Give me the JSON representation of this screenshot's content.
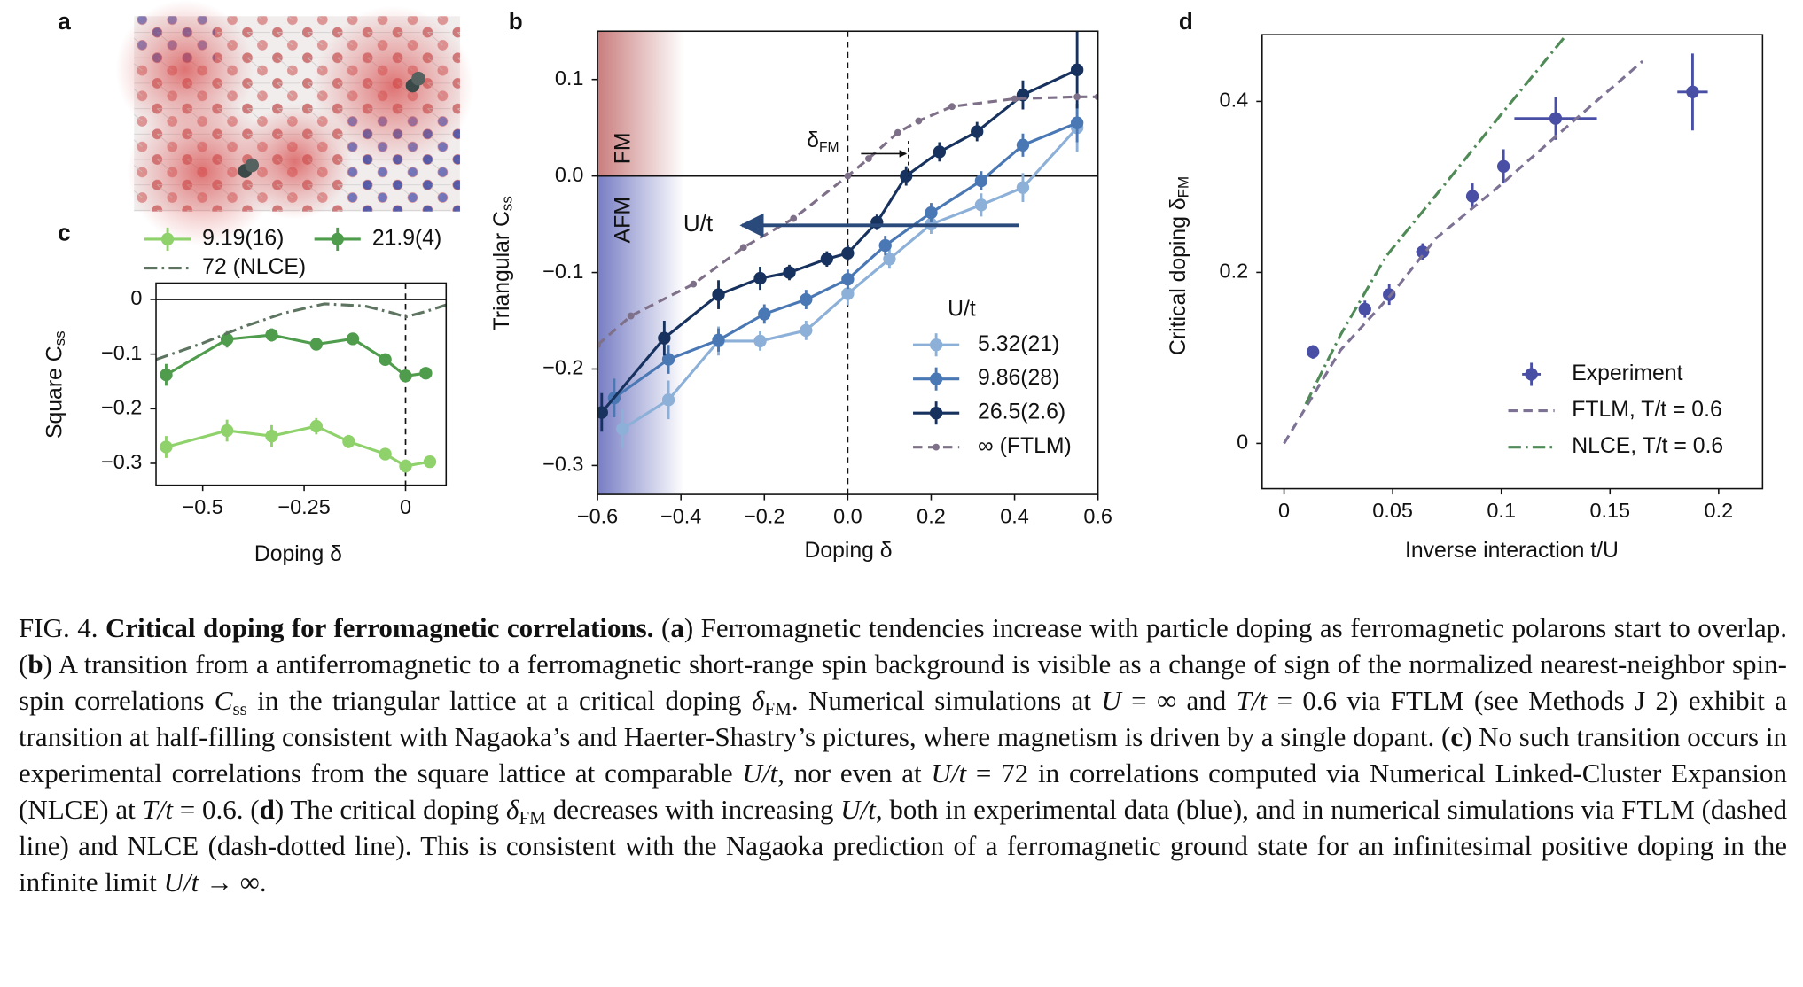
{
  "panel_labels": [
    "a",
    "b",
    "c",
    "d"
  ],
  "chart_data": [
    {
      "type": "line",
      "xlabel": "Doping δ",
      "ylabel": "Triangular C",
      "ylabel_subscript": "ss",
      "xlim": [
        -0.6,
        0.6
      ],
      "ylim": [
        -0.33,
        0.15
      ],
      "xticks": [
        {
          "value": -0.6,
          "label": "−0.6"
        },
        {
          "value": -0.4,
          "label": "−0.4"
        },
        {
          "value": -0.2,
          "label": "−0.2"
        },
        {
          "value": 0,
          "label": "0.0"
        },
        0.2,
        0.4,
        0.6
      ],
      "yticks": [
        {
          "value": -0.3,
          "label": "−0.3"
        },
        {
          "value": -0.2,
          "label": "−0.2"
        },
        {
          "value": -0.1,
          "label": "−0.1"
        },
        {
          "value": 0,
          "label": "0.0"
        },
        0.1
      ],
      "zero_lines": true,
      "legend_title": "U/t",
      "legend_loc": "lower right",
      "legend_columns": 1,
      "annotations": [
        "FM",
        "AFM",
        "U/t"
      ],
      "threshold_label": "δ",
      "threshold_label_subscript": "FM",
      "series": [
        {
          "name": "5.32(21)",
          "color": "#8cb0d8",
          "linestyle": "solid",
          "marker": "circle",
          "x": [
            -0.54,
            -0.43,
            -0.31,
            -0.21,
            -0.1,
            0,
            0.1,
            0.2,
            0.32,
            0.42,
            0.55
          ],
          "values": [
            -0.262,
            -0.232,
            -0.171,
            -0.171,
            -0.16,
            -0.122,
            -0.086,
            -0.05,
            -0.03,
            -0.012,
            0.05
          ],
          "errors": [
            0.02,
            0.02,
            0.015,
            0.01,
            0.01,
            0.012,
            0.01,
            0.01,
            0.012,
            0.015,
            0.025
          ]
        },
        {
          "name": "9.86(28)",
          "color": "#4a78b5",
          "linestyle": "solid",
          "marker": "circle",
          "x": [
            -0.56,
            -0.43,
            -0.31,
            -0.2,
            -0.1,
            0,
            0.09,
            0.2,
            0.32,
            0.42,
            0.55
          ],
          "values": [
            -0.23,
            -0.19,
            -0.17,
            -0.143,
            -0.128,
            -0.107,
            -0.072,
            -0.038,
            -0.005,
            0.032,
            0.055
          ],
          "errors": [
            0.02,
            0.015,
            0.012,
            0.01,
            0.01,
            0.01,
            0.01,
            0.01,
            0.01,
            0.012,
            0.02
          ]
        },
        {
          "name": "26.5(2.6)",
          "color": "#17325f",
          "linestyle": "solid",
          "marker": "circle",
          "x": [
            -0.59,
            -0.44,
            -0.31,
            -0.21,
            -0.14,
            -0.05,
            0,
            0.07,
            0.14,
            0.22,
            0.31,
            0.42,
            0.55
          ],
          "values": [
            -0.245,
            -0.168,
            -0.123,
            -0.106,
            -0.1,
            -0.086,
            -0.08,
            -0.048,
            0,
            0.025,
            0.046,
            0.084,
            0.11
          ],
          "errors": [
            0.02,
            0.018,
            0.015,
            0.012,
            0.008,
            0.008,
            0.008,
            0.008,
            0.01,
            0.01,
            0.01,
            0.015,
            0.04
          ]
        },
        {
          "name": "∞ (FTLM)",
          "color": "#7e7088",
          "linestyle": "dashed",
          "marker": "dot",
          "x": [
            -0.6,
            -0.52,
            -0.37,
            -0.25,
            -0.13,
            0,
            0.05,
            0.12,
            0.17,
            0.25,
            0.4,
            0.55,
            0.6
          ],
          "values": [
            -0.175,
            -0.145,
            -0.112,
            -0.074,
            -0.044,
            0,
            0.018,
            0.045,
            0.057,
            0.072,
            0.08,
            0.082,
            0.082
          ]
        }
      ]
    },
    {
      "type": "line",
      "xlabel": "Doping δ",
      "ylabel": "Square C",
      "ylabel_subscript": "ss",
      "xlim": [
        -0.615,
        0.1
      ],
      "ylim": [
        -0.34,
        0.03
      ],
      "xticks": [
        {
          "value": -0.5,
          "label": "−0.5"
        },
        {
          "value": -0.25,
          "label": "−0.25"
        },
        0
      ],
      "yticks": [
        {
          "value": -0.3,
          "label": "−0.3"
        },
        {
          "value": -0.2,
          "label": "−0.2"
        },
        {
          "value": -0.1,
          "label": "−0.1"
        },
        0
      ],
      "zero_lines": true,
      "legend_loc": "upper left",
      "legend_columns": 2,
      "series": [
        {
          "name": "9.19(16)",
          "color": "#8fd26b",
          "linestyle": "solid",
          "marker": "circle",
          "x": [
            -0.59,
            -0.44,
            -0.33,
            -0.22,
            -0.14,
            -0.05,
            0,
            0.06
          ],
          "values": [
            -0.27,
            -0.24,
            -0.25,
            -0.232,
            -0.26,
            -0.283,
            -0.305,
            -0.297
          ],
          "errors": [
            0.02,
            0.02,
            0.02,
            0.015,
            0.012,
            0.01,
            0.012,
            0.01
          ]
        },
        {
          "name": "21.9(4)",
          "color": "#4e9c4c",
          "linestyle": "solid",
          "marker": "circle",
          "x": [
            -0.59,
            -0.44,
            -0.33,
            -0.22,
            -0.13,
            -0.05,
            0,
            0.05
          ],
          "values": [
            -0.138,
            -0.073,
            -0.065,
            -0.082,
            -0.072,
            -0.11,
            -0.14,
            -0.135
          ],
          "errors": [
            0.02,
            0.015,
            0.012,
            0.01,
            0.01,
            0.01,
            0.01,
            0.01
          ]
        },
        {
          "name": "72 (NLCE)",
          "color": "#5d7560",
          "linestyle": "dashdot",
          "marker": "none",
          "x": [
            -0.615,
            -0.5,
            -0.4,
            -0.3,
            -0.2,
            -0.1,
            -0.03,
            0,
            0.05,
            0.1
          ],
          "values": [
            -0.11,
            -0.08,
            -0.05,
            -0.025,
            -0.008,
            -0.012,
            -0.025,
            -0.032,
            -0.022,
            -0.01
          ]
        }
      ]
    },
    {
      "type": "line",
      "xlabel": "Inverse interaction t/U",
      "ylabel": "Critical doping δ",
      "ylabel_subscript": "FM",
      "xlim": [
        -0.0101,
        0.2202
      ],
      "ylim": [
        -0.053,
        0.478
      ],
      "xticks": [
        0,
        0.05,
        0.1,
        0.15,
        0.2
      ],
      "yticks": [
        0,
        0.2,
        0.4
      ],
      "zero_lines": false,
      "legend_loc": "lower right",
      "legend_columns": 1,
      "series": [
        {
          "name": "Experiment",
          "color": "#4a4fa6",
          "linestyle": "none",
          "marker": "circle",
          "x": [
            0.0133,
            0.0372,
            0.0484,
            0.0638,
            0.0867,
            0.101,
            0.125,
            0.188
          ],
          "values": [
            0.107,
            0.157,
            0.174,
            0.224,
            0.289,
            0.324,
            0.38,
            0.411
          ],
          "errors": [
            0.008,
            0.01,
            0.012,
            0.01,
            0.015,
            0.02,
            0.025,
            0.045
          ],
          "xerrors": [
            0.002,
            0.002,
            0.002,
            0.003,
            0.002,
            0.002,
            0.019,
            0.007
          ]
        },
        {
          "name": "FTLM, T/t = 0.6",
          "color": "#7d7294",
          "linestyle": "dashed",
          "marker": "none",
          "x": [
            0,
            0.026,
            0.05,
            0.07,
            0.1,
            0.13,
            0.165
          ],
          "values": [
            0,
            0.109,
            0.176,
            0.24,
            0.303,
            0.37,
            0.447
          ]
        },
        {
          "name": "NLCE, T/t = 0.6",
          "color": "#4f8a57",
          "linestyle": "dashdot",
          "marker": "none",
          "x": [
            0.01,
            0.026,
            0.047,
            0.074,
            0.1,
            0.13
          ],
          "values": [
            0.046,
            0.127,
            0.219,
            0.303,
            0.385,
            0.478
          ]
        }
      ]
    }
  ],
  "caption": {
    "segments": [
      {
        "text": "FIG. 4.  ",
        "style": "plain"
      },
      {
        "text": "Critical doping for ferromagnetic correlations.",
        "style": "bold"
      },
      {
        "text": "  (",
        "style": "plain"
      },
      {
        "text": "a",
        "style": "bold"
      },
      {
        "text": ") Ferromagnetic tendencies increase with particle doping as ferromagnetic polarons start to overlap.  (",
        "style": "plain"
      },
      {
        "text": "b",
        "style": "bold"
      },
      {
        "text": ") A transition from a antiferromagnetic to a ferromagnetic short-range spin background is visible as a change of sign of the normalized nearest-neighbor spin-spin correlations ",
        "style": "plain"
      },
      {
        "text": "C",
        "style": "italic"
      },
      {
        "text": "ss",
        "style": "sub"
      },
      {
        "text": " in the triangular lattice at a critical doping ",
        "style": "plain"
      },
      {
        "text": "δ",
        "style": "italic"
      },
      {
        "text": "FM",
        "style": "sub"
      },
      {
        "text": ". Numerical simulations at ",
        "style": "plain"
      },
      {
        "text": "U",
        "style": "italic"
      },
      {
        "text": " = ∞ and ",
        "style": "plain"
      },
      {
        "text": "T/t",
        "style": "italic"
      },
      {
        "text": " = 0.6 via FTLM (see Methods  J 2) exhibit a transition at half-filling consistent with Nagaoka’s and Haerter-Shastry’s pictures, where magnetism is driven by a single dopant.  (",
        "style": "plain"
      },
      {
        "text": "c",
        "style": "bold"
      },
      {
        "text": ") No such transition occurs in experimental correlations from the square lattice at comparable ",
        "style": "plain"
      },
      {
        "text": "U/t",
        "style": "italic"
      },
      {
        "text": ", nor even at ",
        "style": "plain"
      },
      {
        "text": "U/t",
        "style": "italic"
      },
      {
        "text": " = 72 in correlations computed via Numerical Linked-Cluster Expansion (NLCE) at ",
        "style": "plain"
      },
      {
        "text": "T/t",
        "style": "italic"
      },
      {
        "text": " = 0.6.  (",
        "style": "plain"
      },
      {
        "text": "d",
        "style": "bold"
      },
      {
        "text": ") The critical doping ",
        "style": "plain"
      },
      {
        "text": "δ",
        "style": "italic"
      },
      {
        "text": "FM",
        "style": "sub"
      },
      {
        "text": " decreases with increasing ",
        "style": "plain"
      },
      {
        "text": "U/t",
        "style": "italic"
      },
      {
        "text": ", both in experimental data (blue), and in numerical simulations via FTLM (dashed line) and NLCE (dash-dotted line). This is consistent with the Nagaoka prediction of a ferromagnetic ground state for an infinitesimal positive doping in the infinite limit ",
        "style": "plain"
      },
      {
        "text": "U/t",
        "style": "italic"
      },
      {
        "text": " → ∞.",
        "style": "plain"
      }
    ]
  }
}
